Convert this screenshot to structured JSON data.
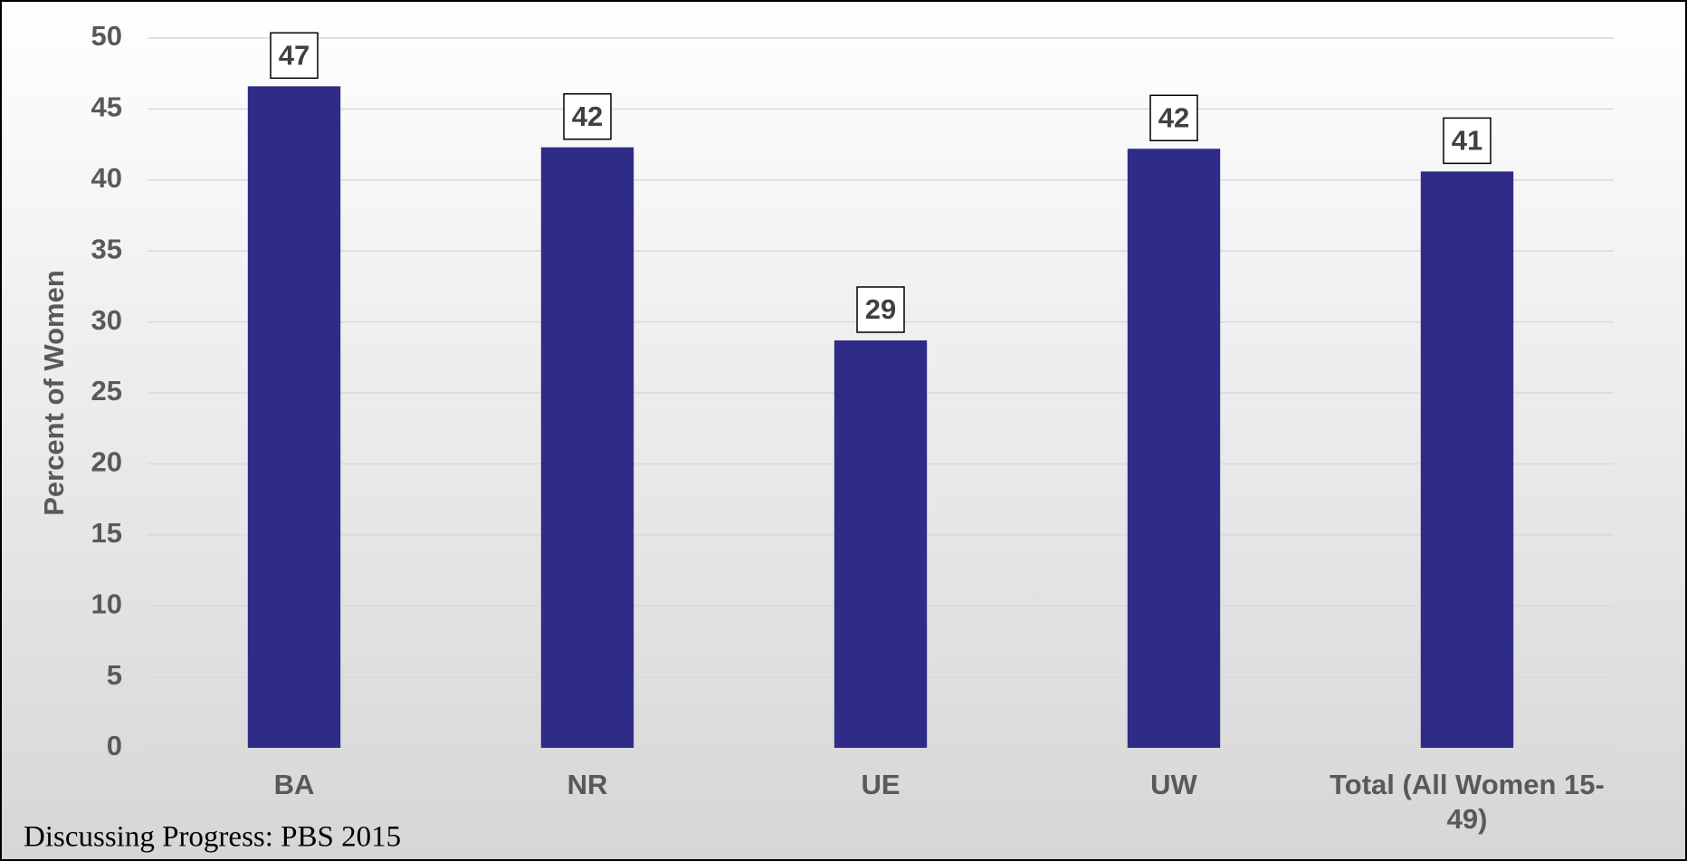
{
  "chart_data": {
    "type": "bar",
    "y_label": "Percent of Women",
    "categories": [
      "BA",
      "NR",
      "UE",
      "UW",
      "Total (All Women 15-49)"
    ],
    "values": [
      46.6,
      42.3,
      28.7,
      42.2,
      40.6
    ],
    "value_labels": [
      "47",
      "42",
      "29",
      "42",
      "41"
    ],
    "color": "#2e2c87",
    "ylim": [
      0,
      50
    ],
    "yticks": [
      0,
      5,
      10,
      15,
      20,
      25,
      30,
      35,
      40,
      45,
      50
    ],
    "grid": true,
    "source": "Discussing Progress: PBS 2015"
  }
}
